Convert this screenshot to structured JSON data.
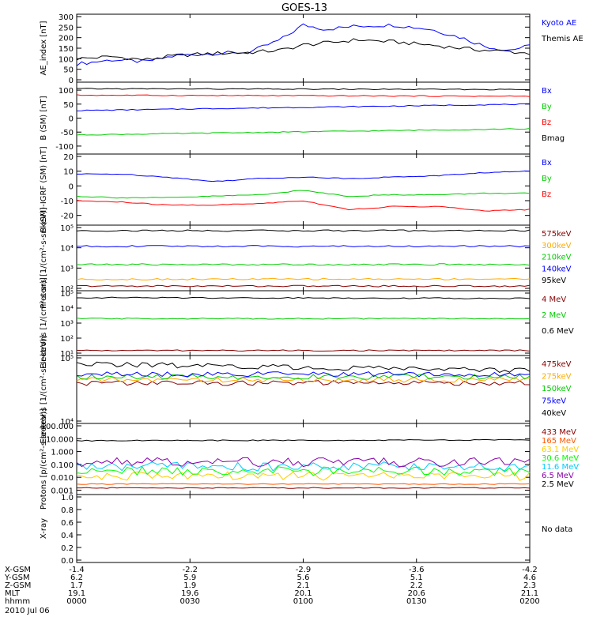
{
  "title": "GOES-13",
  "chart_data": [
    {
      "type": "line",
      "ylabel": "AE_index [nT]",
      "yscale": "linear",
      "ylim": [
        0,
        300
      ],
      "ticks": [
        0,
        50,
        100,
        150,
        200,
        250,
        300
      ],
      "tick_labels": [
        "0",
        "50",
        "100",
        "150",
        "200",
        "250",
        "300"
      ],
      "series": [
        {
          "name": "Kyoto AE",
          "color": "#0000ff",
          "x": [
            0,
            0.08,
            0.15,
            0.22,
            0.3,
            0.38,
            0.45,
            0.5,
            0.55,
            0.62,
            0.7,
            0.78,
            0.85,
            0.9,
            0.95,
            1
          ],
          "values": [
            75,
            95,
            85,
            115,
            125,
            130,
            190,
            260,
            240,
            255,
            260,
            240,
            200,
            160,
            140,
            160
          ]
        },
        {
          "name": "Themis AE",
          "color": "#000000",
          "x": [
            0,
            0.08,
            0.15,
            0.22,
            0.3,
            0.38,
            0.45,
            0.5,
            0.55,
            0.62,
            0.7,
            0.78,
            0.85,
            0.9,
            0.95,
            1
          ],
          "values": [
            100,
            110,
            95,
            115,
            125,
            130,
            140,
            165,
            175,
            190,
            180,
            165,
            150,
            140,
            135,
            125
          ]
        }
      ]
    },
    {
      "type": "line",
      "ylabel": "B (SM) [nT]",
      "yscale": "linear",
      "ylim": [
        -120,
        120
      ],
      "ticks": [
        -100,
        -50,
        0,
        50,
        100
      ],
      "tick_labels": [
        "-100",
        "-50",
        "0",
        "50",
        "100"
      ],
      "series": [
        {
          "name": "Bx",
          "color": "#0000ff",
          "x": [
            0,
            1
          ],
          "values": [
            27,
            50
          ]
        },
        {
          "name": "By",
          "color": "#00cc00",
          "x": [
            0,
            1
          ],
          "values": [
            -60,
            -38
          ]
        },
        {
          "name": "Bz",
          "color": "#ff0000",
          "x": [
            0,
            1
          ],
          "values": [
            82,
            78
          ]
        },
        {
          "name": "Bmag",
          "color": "#000000",
          "x": [
            0,
            1
          ],
          "values": [
            105,
            102
          ]
        }
      ]
    },
    {
      "type": "line",
      "ylabel": "B (SM)-IGRF (SM) [nT]",
      "yscale": "linear",
      "ylim": [
        -25,
        20
      ],
      "ticks": [
        -20,
        -10,
        0,
        10,
        20
      ],
      "tick_labels": [
        "-20",
        "-10",
        "0",
        "10",
        "20"
      ],
      "series": [
        {
          "name": "Bx",
          "color": "#0000ff",
          "x": [
            0,
            0.1,
            0.2,
            0.3,
            0.4,
            0.5,
            0.6,
            0.7,
            0.8,
            0.9,
            1
          ],
          "values": [
            8,
            8,
            6,
            3,
            5,
            6,
            5,
            6,
            7,
            9,
            10
          ]
        },
        {
          "name": "By",
          "color": "#00cc00",
          "x": [
            0,
            0.1,
            0.2,
            0.3,
            0.4,
            0.5,
            0.6,
            0.7,
            0.8,
            0.9,
            1
          ],
          "values": [
            -7,
            -8,
            -8,
            -7,
            -6,
            -3,
            -7,
            -6,
            -6,
            -5,
            -5
          ]
        },
        {
          "name": "Bz",
          "color": "#ff0000",
          "x": [
            0,
            0.1,
            0.2,
            0.3,
            0.4,
            0.5,
            0.6,
            0.7,
            0.8,
            0.9,
            1
          ],
          "values": [
            -10,
            -11,
            -13,
            -13,
            -12,
            -10,
            -16,
            -14,
            -14,
            -17,
            -16
          ]
        }
      ]
    },
    {
      "type": "line",
      "ylabel": "Protons [1/(cm²-s-sr-keV)]",
      "yscale": "log",
      "ylim": [
        100,
        100000
      ],
      "ticks": [
        100,
        1000,
        10000,
        100000
      ],
      "tick_labels": [
        "10²",
        "10³",
        "10⁴",
        "10⁵"
      ],
      "series": [
        {
          "name": "575keV",
          "color": "#880000",
          "x": [
            0,
            1
          ],
          "values": [
            130,
            130
          ]
        },
        {
          "name": "300keV",
          "color": "#ffaa00",
          "x": [
            0,
            1
          ],
          "values": [
            280,
            290
          ]
        },
        {
          "name": "210keV",
          "color": "#00cc00",
          "x": [
            0,
            1
          ],
          "values": [
            1500,
            1500
          ]
        },
        {
          "name": "140keV",
          "color": "#0000ff",
          "x": [
            0,
            1
          ],
          "values": [
            12000,
            12000
          ]
        },
        {
          "name": "95keV",
          "color": "#000000",
          "x": [
            0,
            1
          ],
          "values": [
            70000,
            70000
          ]
        }
      ]
    },
    {
      "type": "line",
      "ylabel": "Electrons [1/(cm²-s-sr)]",
      "yscale": "log",
      "ylim": [
        10,
        100000
      ],
      "ticks": [
        10,
        100,
        1000,
        10000,
        100000
      ],
      "tick_labels": [
        "10¹",
        "10²",
        "10³",
        "10⁴",
        "10⁵"
      ],
      "series": [
        {
          "name": "4 MeV",
          "color": "#880000",
          "x": [
            0,
            1
          ],
          "values": [
            15,
            15
          ]
        },
        {
          "name": "2 MeV",
          "color": "#00cc00",
          "x": [
            0,
            1
          ],
          "values": [
            2000,
            2000
          ]
        },
        {
          "name": "0.6 MeV",
          "color": "#000000",
          "x": [
            0,
            1
          ],
          "values": [
            50000,
            45000
          ]
        }
      ]
    },
    {
      "type": "line",
      "ylabel": "Electrons [1/(cm²-s-sr-keV)]",
      "yscale": "log",
      "ylim": [
        10000,
        100000
      ],
      "ticks": [
        10000,
        100000
      ],
      "tick_labels": [
        "10⁴",
        "10⁵"
      ],
      "series": [
        {
          "name": "475keV",
          "color": "#880000",
          "x": [
            0,
            1
          ],
          "values": [
            40000,
            40000
          ]
        },
        {
          "name": "275keV",
          "color": "#ffaa00",
          "x": [
            0,
            1
          ],
          "values": [
            45000,
            45000
          ]
        },
        {
          "name": "150keV",
          "color": "#00cc00",
          "x": [
            0,
            1
          ],
          "values": [
            50000,
            50000
          ]
        },
        {
          "name": "75keV",
          "color": "#0000ff",
          "x": [
            0,
            1
          ],
          "values": [
            55000,
            55000
          ]
        },
        {
          "name": "40keV",
          "color": "#000000",
          "x": [
            0,
            1
          ],
          "values": [
            80000,
            63000
          ]
        }
      ]
    },
    {
      "type": "line",
      "ylabel": "Protons [p/(cm²-s-sr-keV)]",
      "yscale": "log",
      "ylim": [
        0.0007,
        100
      ],
      "ticks": [
        0.001,
        0.01,
        0.1,
        1,
        10,
        100
      ],
      "tick_labels": [
        "0.001",
        "0.010",
        "0.100",
        "1.000",
        "10.000",
        "100.000"
      ],
      "series": [
        {
          "name": "433 MeV",
          "color": "#880000",
          "x": [
            0,
            1
          ],
          "values": [
            0.0015,
            0.0015
          ]
        },
        {
          "name": "165 MeV",
          "color": "#ff5500",
          "x": [
            0,
            1
          ],
          "values": [
            0.003,
            0.003
          ]
        },
        {
          "name": "63.1 MeV",
          "color": "#ffcc00",
          "x": [
            0,
            1
          ],
          "values": [
            0.012,
            0.012
          ]
        },
        {
          "name": "30.6 MeV",
          "color": "#00ff00",
          "x": [
            0,
            1
          ],
          "values": [
            0.03,
            0.03
          ]
        },
        {
          "name": "11.6 MeV",
          "color": "#00ccff",
          "x": [
            0,
            1
          ],
          "values": [
            0.07,
            0.07
          ]
        },
        {
          "name": "6.5 MeV",
          "color": "#8800aa",
          "x": [
            0,
            1
          ],
          "values": [
            0.15,
            0.15
          ]
        },
        {
          "name": "2.5 MeV",
          "color": "#000000",
          "x": [
            0,
            1
          ],
          "values": [
            7,
            8
          ]
        }
      ]
    },
    {
      "type": "line",
      "ylabel": "X-ray",
      "yscale": "linear",
      "ylim": [
        0,
        1
      ],
      "ticks": [
        0,
        0.2,
        0.4,
        0.6,
        0.8,
        1.0
      ],
      "tick_labels": [
        "0.0",
        "0.2",
        "0.4",
        "0.6",
        "0.8",
        "1.0"
      ],
      "note": "No data",
      "series": []
    }
  ],
  "x_axis": {
    "rows": [
      {
        "label": "X-GSM",
        "values": [
          "-1.4",
          "-2.2",
          "-2.9",
          "-3.6",
          "-4.2"
        ]
      },
      {
        "label": "Y-GSM",
        "values": [
          "6.2",
          "5.9",
          "5.6",
          "5.1",
          "4.6"
        ]
      },
      {
        "label": "Z-GSM",
        "values": [
          "1.7",
          "1.9",
          "2.1",
          "2.2",
          "2.3"
        ]
      },
      {
        "label": "MLT",
        "values": [
          "19.1",
          "19.6",
          "20.1",
          "20.6",
          "21.1"
        ]
      },
      {
        "label": "hhmm",
        "values": [
          "0000",
          "0030",
          "0100",
          "0130",
          "0200"
        ]
      }
    ],
    "date": "2010 Jul 06"
  }
}
